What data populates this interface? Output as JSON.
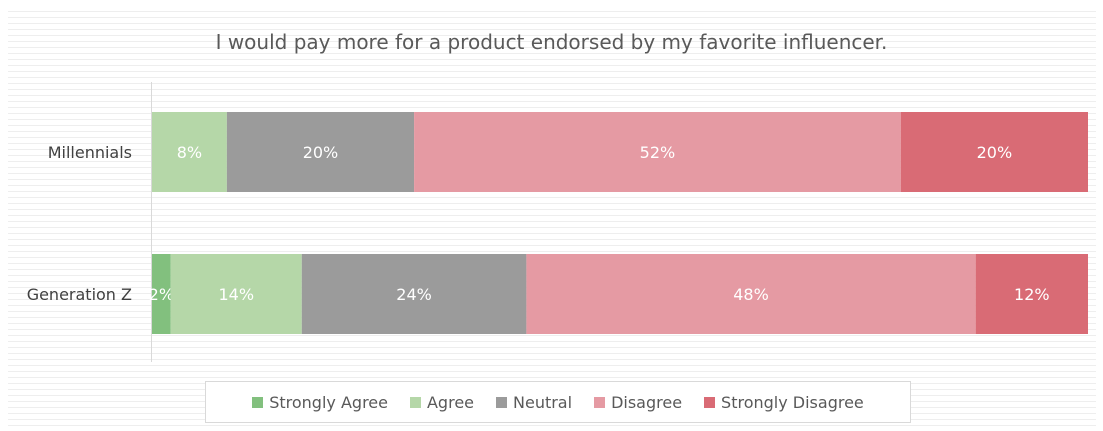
{
  "chart_data": {
    "type": "bar",
    "orientation": "horizontal",
    "stacked": true,
    "title": "I would pay more for a product endorsed by my favorite influencer.",
    "categories": [
      "Millennials",
      "Generation Z"
    ],
    "series": [
      {
        "name": "Strongly Agree",
        "color": "#82c07e",
        "values": [
          0,
          2
        ]
      },
      {
        "name": "Agree",
        "color": "#b5d7a8",
        "values": [
          8,
          14
        ]
      },
      {
        "name": "Neutral",
        "color": "#9b9b9b",
        "values": [
          20,
          24
        ]
      },
      {
        "name": "Disagree",
        "color": "#e59aa3",
        "values": [
          52,
          48
        ]
      },
      {
        "name": "Strongly Disagree",
        "color": "#d96b75",
        "values": [
          20,
          12
        ]
      }
    ],
    "xlim": [
      0,
      100
    ],
    "unit": "%",
    "grid": "horizontal",
    "legend_position": "bottom"
  }
}
